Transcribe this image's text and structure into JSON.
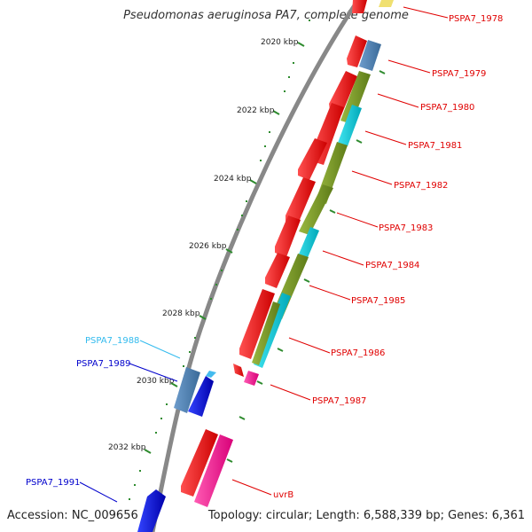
{
  "header": {
    "title": "Pseudomonas aeruginosa PA7, complete genome"
  },
  "footer": {
    "accession": "Accession: NC_009656",
    "summary": "Topology: circular; Length: 6,588,339 bp; Genes: 6,361"
  },
  "ticks": [
    "2020 kbp",
    "2022 kbp",
    "2024 kbp",
    "2026 kbp",
    "2028 kbp",
    "2030 kbp",
    "2032 kbp"
  ],
  "gene_labels": [
    {
      "text": "PSPA7_1978",
      "color": "#e00000"
    },
    {
      "text": "PSPA7_1979",
      "color": "#e00000"
    },
    {
      "text": "PSPA7_1980",
      "color": "#e00000"
    },
    {
      "text": "PSPA7_1981",
      "color": "#e00000"
    },
    {
      "text": "PSPA7_1982",
      "color": "#e00000"
    },
    {
      "text": "PSPA7_1983",
      "color": "#e00000"
    },
    {
      "text": "PSPA7_1984",
      "color": "#e00000"
    },
    {
      "text": "PSPA7_1985",
      "color": "#e00000"
    },
    {
      "text": "PSPA7_1986",
      "color": "#e00000"
    },
    {
      "text": "PSPA7_1987",
      "color": "#e00000"
    },
    {
      "text": "uvrB",
      "color": "#e00000"
    },
    {
      "text": "PSPA7_1988",
      "color": "#33bbee"
    },
    {
      "text": "PSPA7_1989",
      "color": "#0000cc"
    },
    {
      "text": "PSPA7_1991",
      "color": "#0000cc"
    }
  ],
  "colors": {
    "cds": "#ff0000",
    "dark_red": "#b00000",
    "steel_blue": "#4a7fb0",
    "cyan": "#00c8d8",
    "olive": "#7a9a28",
    "magenta": "#ff1493",
    "blue": "#0000ee",
    "backbone": "#888888",
    "tick_green": "#2e8b2e"
  }
}
